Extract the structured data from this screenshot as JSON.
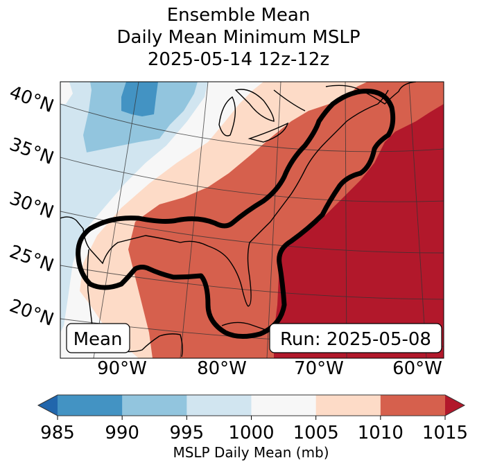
{
  "title": {
    "line1": "Ensemble Mean",
    "line2": "Daily Mean Minimum MSLP",
    "line3": "2025-05-14 12z-12z"
  },
  "map": {
    "lat_labels": [
      "40°N",
      "35°N",
      "30°N",
      "25°N",
      "20°N"
    ],
    "lon_labels": [
      "90°W",
      "80°W",
      "70°W",
      "60°W"
    ],
    "left_box_label": "Mean",
    "right_box_label": "Run: 2025-05-08",
    "contour_color": "#000000",
    "field_colors": {
      "985-990": "#4393c3",
      "990-995": "#92c5de",
      "995-1000": "#d1e5f0",
      "1000-1005": "#f7f7f7",
      "1005-1010": "#fddbc7",
      "1010-1015": "#d6604d",
      "1015+": "#b2182b"
    }
  },
  "colorbar": {
    "label": "MSLP Daily Mean (mb)",
    "ticks": [
      "985",
      "990",
      "995",
      "1000",
      "1005",
      "1010",
      "1015"
    ],
    "extend": "both",
    "under_color": "#2166ac",
    "over_color": "#b2182b",
    "colors": [
      "#4393c3",
      "#92c5de",
      "#d1e5f0",
      "#f7f7f7",
      "#fddbc7",
      "#d6604d"
    ]
  }
}
